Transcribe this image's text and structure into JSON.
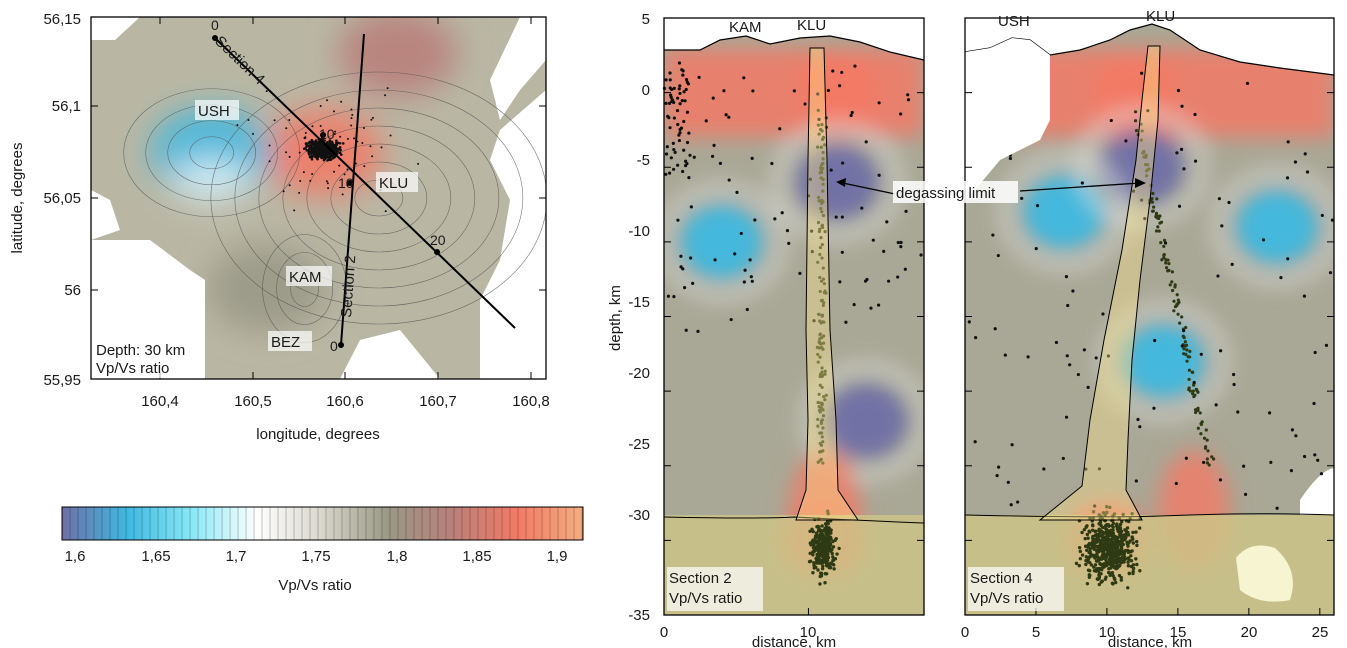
{
  "colors": {
    "scale": [
      "#6f6fa6",
      "#3fb8e0",
      "#8ae8f6",
      "#ffffff",
      "#d8d6cc",
      "#9a9886",
      "#b9807a",
      "#f27a66",
      "#f3ae80"
    ],
    "frame": "#000000",
    "dots": "#111111",
    "deep_dots": "#2e3a14",
    "crust_bg": "#cdc487"
  },
  "map": {
    "xlabel": "longitude, degrees",
    "ylabel": "latitude, degrees",
    "xticks": [
      "160,4",
      "160,5",
      "160,6",
      "160,7",
      "160,8"
    ],
    "yticks": [
      "56,15",
      "56,1",
      "56,05",
      "56",
      "55,95"
    ],
    "depth_label": "Depth: 30 km",
    "ratio_label": "Vp/Vs ratio",
    "section4_label": "Section 4",
    "section2_label": "Section 2",
    "volcanoes": [
      "USH",
      "KLU",
      "KAM",
      "BEZ"
    ],
    "marks": [
      "0",
      "10",
      "10",
      "20",
      "0"
    ]
  },
  "colorbar": {
    "ticks": [
      "1,6",
      "1,65",
      "1,7",
      "1,75",
      "1,8",
      "1,85",
      "1,9"
    ],
    "label": "Vp/Vs ratio"
  },
  "sec2": {
    "ylabel": "depth, km",
    "xlabel": "distance, km",
    "yticks": [
      "5",
      "0",
      "-5",
      "-10",
      "-15",
      "-20",
      "-25",
      "-30",
      "-35"
    ],
    "xticks": [
      "0",
      "10"
    ],
    "volcanoes": [
      "KAM",
      "KLU"
    ],
    "name": "Section 2",
    "ratio": "Vp/Vs ratio",
    "annotation": "degassing limit"
  },
  "sec4": {
    "xlabel": "distance, km",
    "xticks": [
      "0",
      "5",
      "10",
      "15",
      "20",
      "25"
    ],
    "volcanoes": [
      "USH",
      "KLU"
    ],
    "name": "Section 4",
    "ratio": "Vp/Vs ratio"
  },
  "chart_data": [
    {
      "type": "heatmap",
      "title": "",
      "xlabel": "longitude, degrees",
      "ylabel": "latitude, degrees",
      "xlim": [
        160.33,
        160.82
      ],
      "ylim": [
        55.95,
        56.15
      ],
      "annotations": [
        "Depth: 30 km",
        "Vp/Vs ratio",
        "Section 4",
        "Section 2",
        "USH",
        "KLU",
        "KAM",
        "BEZ"
      ],
      "anomalies": [
        {
          "lon": 160.58,
          "lat": 56.075,
          "vpvs": 1.88
        },
        {
          "lon": 160.66,
          "lat": 56.13,
          "vpvs": 1.85
        },
        {
          "lon": 160.46,
          "lat": 56.075,
          "vpvs": 1.64
        },
        {
          "lon": 160.52,
          "lat": 56.0,
          "vpvs": 1.8
        }
      ],
      "sections": [
        {
          "name": "Section 4",
          "start": [
            160.46,
            56.137
          ],
          "end": [
            160.795,
            55.98
          ],
          "marks_km": [
            0,
            10,
            20
          ]
        },
        {
          "name": "Section 2",
          "start": [
            160.6,
            55.968
          ],
          "end": [
            160.63,
            56.135
          ],
          "marks_km": [
            0,
            10
          ]
        }
      ]
    },
    {
      "type": "heatmap",
      "title": "",
      "name": "Section 2",
      "xlabel": "distance, km",
      "ylabel": "depth, km",
      "xlim": [
        0,
        18
      ],
      "ylim": [
        -35,
        5
      ],
      "annotations": [
        "KAM",
        "KLU",
        "degassing limit",
        "Section 2",
        "Vp/Vs ratio"
      ],
      "moho_depth": -30,
      "degassing_limit_depth": -6.5,
      "anomalies": [
        {
          "x": 12,
          "z": -6,
          "vpvs": 1.6
        },
        {
          "x": 4,
          "z": -10,
          "vpvs": 1.62
        },
        {
          "x": 14,
          "z": -22,
          "vpvs": 1.6
        },
        {
          "x": 12,
          "z": 0,
          "vpvs": 1.88
        },
        {
          "x": 11,
          "z": -30,
          "vpvs": 1.88
        }
      ]
    },
    {
      "type": "heatmap",
      "title": "",
      "name": "Section 4",
      "xlabel": "distance, km",
      "ylabel": "",
      "xlim": [
        0,
        26
      ],
      "ylim": [
        -35,
        5
      ],
      "annotations": [
        "USH",
        "KLU",
        "Section 4",
        "Vp/Vs ratio"
      ],
      "moho_depth": -30,
      "anomalies": [
        {
          "x": 12.5,
          "z": -5,
          "vpvs": 1.6
        },
        {
          "x": 7,
          "z": -8,
          "vpvs": 1.64
        },
        {
          "x": 14,
          "z": -18,
          "vpvs": 1.63
        },
        {
          "x": 22,
          "z": -9,
          "vpvs": 1.64
        },
        {
          "x": 12,
          "z": 0,
          "vpvs": 1.87
        },
        {
          "x": 10,
          "z": -30,
          "vpvs": 1.88
        }
      ]
    }
  ]
}
